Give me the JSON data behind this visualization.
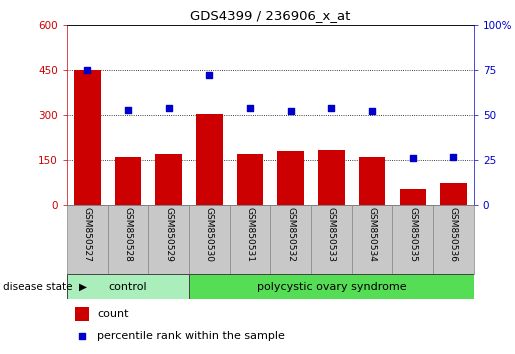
{
  "title": "GDS4399 / 236906_x_at",
  "samples": [
    "GSM850527",
    "GSM850528",
    "GSM850529",
    "GSM850530",
    "GSM850531",
    "GSM850532",
    "GSM850533",
    "GSM850534",
    "GSM850535",
    "GSM850536"
  ],
  "counts": [
    450,
    160,
    170,
    305,
    170,
    180,
    185,
    162,
    55,
    75
  ],
  "percentiles": [
    75,
    53,
    54,
    72,
    54,
    52,
    54,
    52,
    26,
    27
  ],
  "bar_color": "#CC0000",
  "dot_color": "#0000CC",
  "left_ylim": [
    0,
    600
  ],
  "right_ylim": [
    0,
    100
  ],
  "left_yticks": [
    0,
    150,
    300,
    450,
    600
  ],
  "right_yticks": [
    0,
    25,
    50,
    75,
    100
  ],
  "right_yticklabels": [
    "0",
    "25",
    "50",
    "75",
    "100%"
  ],
  "n_control": 3,
  "n_disease": 7,
  "control_label": "control",
  "disease_label": "polycystic ovary syndrome",
  "control_color": "#AAEEBB",
  "disease_color": "#55DD55",
  "label_bg_color": "#C8C8C8",
  "legend_count_label": "count",
  "legend_pct_label": "percentile rank within the sample",
  "disease_state_label": "disease state"
}
